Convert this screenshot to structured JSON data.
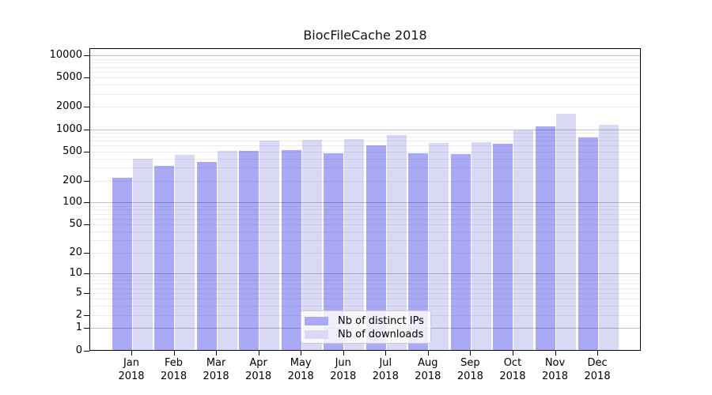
{
  "title": "BiocFileCache 2018",
  "legend": {
    "items": [
      {
        "label": "Nb of distinct IPs"
      },
      {
        "label": "Nb of downloads"
      }
    ]
  },
  "colors": {
    "ips_bar": "#a9a9f5",
    "downloads_bar": "#d9d9f6",
    "axis": "#000000",
    "grid_major": "rgba(0,0,0,0.24)",
    "grid_minor": "rgba(0,0,0,0.07)",
    "legend_bg": "rgba(255,255,255,0.8)",
    "legend_border": "#cccccc"
  },
  "chart_data": {
    "type": "bar",
    "title": "BiocFileCache 2018",
    "categories": [
      "Jan",
      "Feb",
      "Mar",
      "Apr",
      "May",
      "Jun",
      "Jul",
      "Aug",
      "Sep",
      "Oct",
      "Nov",
      "Dec"
    ],
    "x_tick_year": "2018",
    "series": [
      {
        "name": "Nb of distinct IPs",
        "color": "#a9a9f5",
        "values": [
          215,
          315,
          355,
          505,
          520,
          470,
          600,
          460,
          450,
          620,
          1070,
          760
        ]
      },
      {
        "name": "Nb of downloads",
        "color": "#d9d9f6",
        "values": [
          395,
          445,
          500,
          700,
          705,
          720,
          815,
          650,
          660,
          960,
          1600,
          1140
        ]
      }
    ],
    "yscale": "log10(1+x)",
    "yticks": [
      0,
      1,
      2,
      5,
      10,
      20,
      50,
      100,
      200,
      500,
      1000,
      2000,
      5000,
      10000
    ],
    "ylim": [
      0,
      12000
    ],
    "grid": "horizontal major+minor (log decades)",
    "legend_position": "inside lower-center"
  }
}
